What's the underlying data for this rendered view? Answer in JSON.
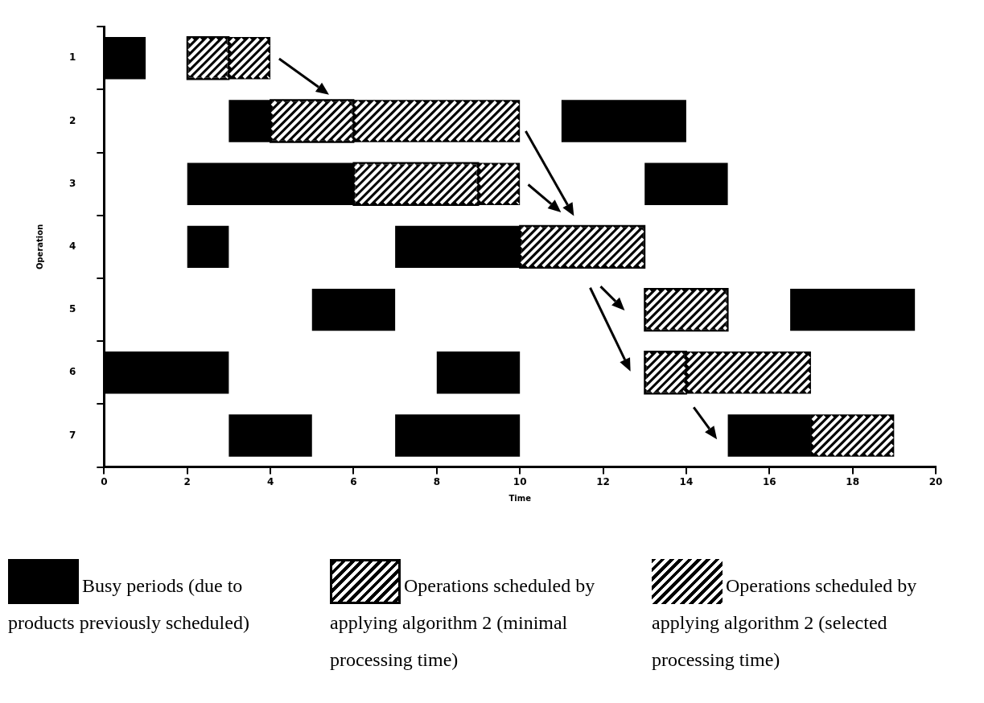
{
  "chart_data": {
    "type": "bar",
    "orientation": "horizontal",
    "xlabel": "Time",
    "ylabel": "Operation",
    "categories": [
      "1",
      "2",
      "3",
      "4",
      "5",
      "6",
      "7"
    ],
    "xlim": [
      0,
      20
    ],
    "xticks": [
      0,
      2,
      4,
      6,
      8,
      10,
      12,
      14,
      16,
      18,
      20
    ],
    "grid": false,
    "legend": "bottom",
    "series": [
      {
        "name": "Busy periods (due to products previously scheduled)",
        "color": "#000000",
        "base": [
          0,
          3,
          2,
          2,
          5,
          0,
          3
        ],
        "values": [
          1,
          1,
          4,
          1,
          2,
          3,
          2
        ]
      },
      {
        "name": "Operations scheduled by applying algorithm 2 (minimal processing time)",
        "color": "#000000",
        "base": [
          2,
          4,
          6,
          10,
          13,
          13,
          null
        ],
        "values": [
          1,
          2,
          3,
          3,
          2,
          1,
          null
        ]
      },
      {
        "name": "Operations scheduled by applying algorithm 2 (selected processing time)",
        "color": "#000000",
        "base": [
          3,
          6,
          9,
          null,
          null,
          14,
          17
        ],
        "values": [
          1,
          4,
          1,
          null,
          null,
          3,
          2
        ]
      },
      {
        "color": "#000000",
        "base": [
          null,
          11,
          13,
          7,
          16.5,
          8,
          7
        ],
        "values": [
          null,
          3,
          2,
          3,
          3,
          2,
          3
        ]
      },
      {
        "color": "#000000",
        "base": [
          null,
          null,
          null,
          null,
          null,
          null,
          15
        ],
        "values": [
          null,
          null,
          null,
          null,
          null,
          null,
          2
        ]
      }
    ]
  }
}
